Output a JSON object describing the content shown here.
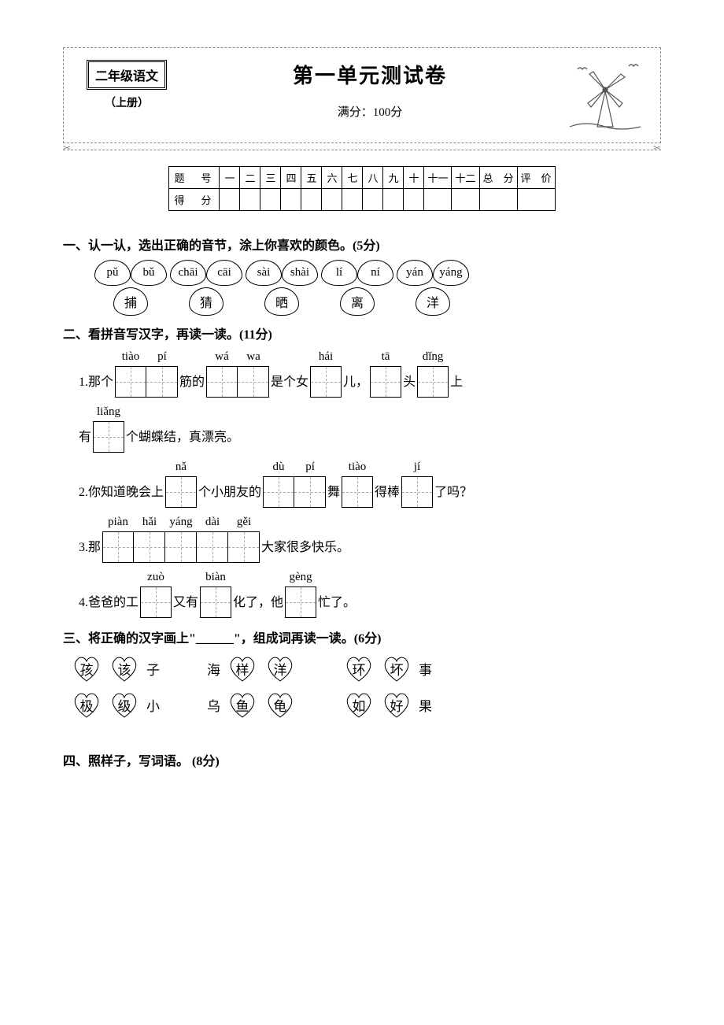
{
  "header": {
    "subject": "二年级语文",
    "volume": "（上册）",
    "title": "第一单元测试卷",
    "fullmark": "满分：100分"
  },
  "scoreTable": {
    "row1Label": "题　号",
    "cols": [
      "一",
      "二",
      "三",
      "四",
      "五",
      "六",
      "七",
      "八",
      "九",
      "十",
      "十一",
      "十二",
      "总　分",
      "评　价"
    ],
    "row2Label": "得　分"
  },
  "q1": {
    "title": "一、认一认，选出正确的音节，涂上你喜欢的颜色。(5分)",
    "groups": [
      {
        "opts": [
          "pǔ",
          "bǔ"
        ],
        "char": "捕"
      },
      {
        "opts": [
          "chāi",
          "cāi"
        ],
        "char": "猜"
      },
      {
        "opts": [
          "sài",
          "shài"
        ],
        "char": "晒"
      },
      {
        "opts": [
          "lí",
          "ní"
        ],
        "char": "离"
      },
      {
        "opts": [
          "yán",
          "yáng"
        ],
        "char": "洋"
      }
    ]
  },
  "q2": {
    "title": "二、看拼音写汉字，再读一读。(11分)",
    "line1": {
      "pre": "1.那个",
      "b1": [
        "tiào",
        "pí"
      ],
      "t1": "筋的",
      "b2": [
        "wá",
        "wa"
      ],
      "t2": "是个女",
      "b3": [
        "hái"
      ],
      "t3": "儿，",
      "b4": [
        "tā"
      ],
      "t4": "头",
      "b5": [
        "dǐng"
      ],
      "t5": "上"
    },
    "line1b": {
      "pre": "有",
      "b1": [
        "liǎng"
      ],
      "t1": "个蝴蝶结，真漂亮。"
    },
    "line2": {
      "pre": "2.你知道晚会上",
      "b1": [
        "nǎ"
      ],
      "t1": "个小朋友的",
      "b2": [
        "dù",
        "pí"
      ],
      "t2": "舞",
      "b3": [
        "tiào"
      ],
      "t3": "得棒",
      "b4": [
        "jí"
      ],
      "t4": "了吗？"
    },
    "line3": {
      "pre": "3.那",
      "b1": [
        "piàn",
        "hǎi",
        "yáng",
        "dài",
        "gěi"
      ],
      "t1": "大家很多快乐。"
    },
    "line4": {
      "pre": "4.爸爸的工",
      "b1": [
        "zuò"
      ],
      "t1": "又有",
      "b2": [
        "biàn"
      ],
      "t2": "化了，他",
      "b3": [
        "gèng"
      ],
      "t3": "忙了。"
    }
  },
  "q3": {
    "title": "三、将正确的汉字画上\"______\"，组成词再读一读。(6分)",
    "groups": [
      [
        {
          "opts": [
            "孩",
            "该"
          ],
          "suffix": "子"
        },
        {
          "opts": [
            "极",
            "级"
          ],
          "suffix": "小"
        }
      ],
      [
        {
          "prefix": "海",
          "opts": [
            "样",
            "洋"
          ]
        },
        {
          "prefix": "乌",
          "opts": [
            "鱼",
            "龟"
          ]
        }
      ],
      [
        {
          "opts": [
            "环",
            "坏"
          ],
          "suffix": "事"
        },
        {
          "opts": [
            "如",
            "好"
          ],
          "suffix": "果"
        }
      ]
    ]
  },
  "q4": {
    "title": "四、照样子，写词语。 (8分)"
  }
}
